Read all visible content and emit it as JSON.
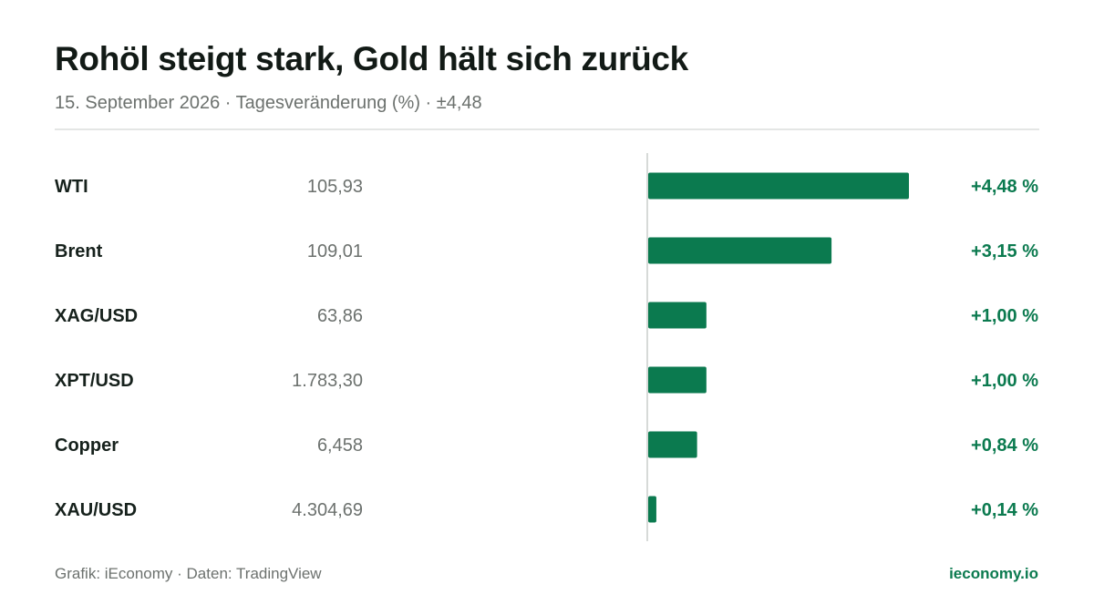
{
  "title": "Rohöl steigt stark, Gold hält sich zurück",
  "subtitle": "15. September 2026 · Tagesveränderung (%) · ±4,48",
  "footer": {
    "source": "Grafik: iEconomy · Daten: TradingView",
    "brand": "ieconomy.io"
  },
  "colors": {
    "bar": "#0b7a4f",
    "positive_text": "#0b7a4f",
    "axis": "#d7dad8"
  },
  "chart_data": {
    "type": "bar",
    "orientation": "horizontal",
    "categories": [
      "WTI",
      "Brent",
      "XAG/USD",
      "XPT/USD",
      "Copper",
      "XAU/USD"
    ],
    "prices": [
      "105,93",
      "109,01",
      "63,86",
      "1.783,30",
      "6,458",
      "4.304,69"
    ],
    "values": [
      4.48,
      3.15,
      1.0,
      1.0,
      0.84,
      0.14
    ],
    "value_labels": [
      "+4,48 %",
      "+3,15 %",
      "+1,00 %",
      "+1,00 %",
      "+0,84 %",
      "+0,14 %"
    ],
    "xlim": [
      0,
      4.48
    ]
  }
}
